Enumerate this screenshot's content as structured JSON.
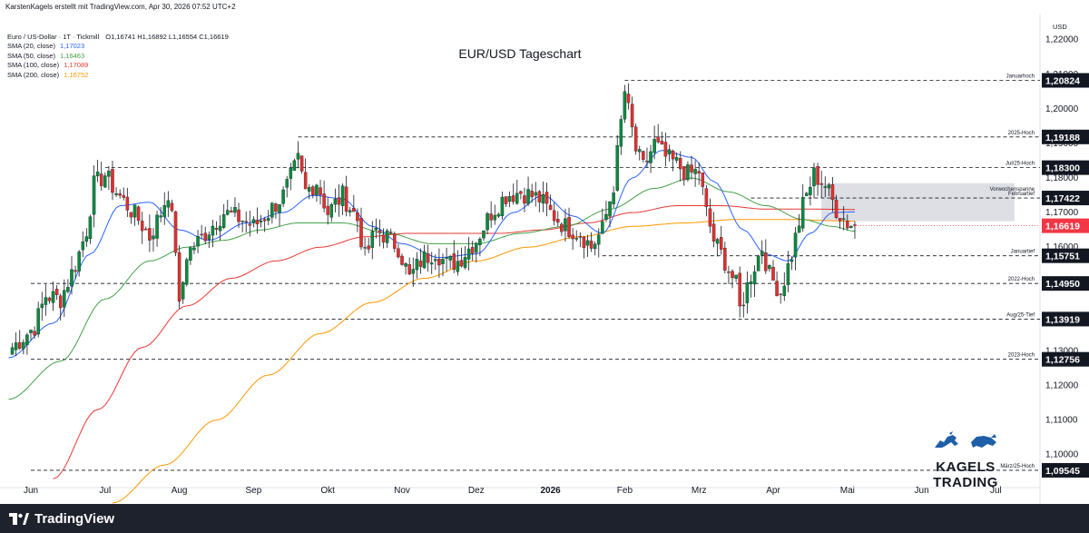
{
  "header": {
    "author_line": "KarstenKagels erstellt mit TradingView.com, Apr 30, 2026 07:52 UTC+2"
  },
  "legend": {
    "symbol_line": "Euro / US-Dollar · 1T · Tickmill",
    "ohlc": "O1,16741  H1,16892  L1,16554  C1,16619",
    "sma": [
      {
        "label": "SMA (20, close)",
        "value": "1,17023",
        "color": "#2962ff"
      },
      {
        "label": "SMA (50, close)",
        "value": "1,16463",
        "color": "#43a047"
      },
      {
        "label": "SMA (100, close)",
        "value": "1,17089",
        "color": "#e53935"
      },
      {
        "label": "SMA (200, close)",
        "value": "1,16752",
        "color": "#ff9800"
      }
    ]
  },
  "footer": {
    "logo_text": "TradingView"
  },
  "branding": {
    "text": "KAGELS TRADING"
  },
  "chart_data": {
    "type": "candlestick",
    "title": "EUR/USD Tageschart",
    "y_axis": {
      "unit": "USD",
      "range": [
        1.0915,
        1.2265
      ],
      "ticks": [
        1.1,
        1.11,
        1.12,
        1.13,
        1.14,
        1.15,
        1.16,
        1.17,
        1.18,
        1.19,
        1.2,
        1.21,
        1.22
      ],
      "tick_labels": [
        "1,10000",
        "1,11000",
        "1,12000",
        "1,13000",
        "1,14000",
        "1,15000",
        "1,16000",
        "1,17000",
        "1,18000",
        "1,19000",
        "1,20000",
        "1,21000",
        "1,22000"
      ]
    },
    "x_axis": {
      "labels": [
        {
          "label": "Jun",
          "month": 0
        },
        {
          "label": "Jul",
          "month": 1
        },
        {
          "label": "Aug",
          "month": 2
        },
        {
          "label": "Sep",
          "month": 3
        },
        {
          "label": "Okt",
          "month": 4
        },
        {
          "label": "Nov",
          "month": 5
        },
        {
          "label": "Dez",
          "month": 6
        },
        {
          "label": "2026",
          "month": 7,
          "bold": true
        },
        {
          "label": "Feb",
          "month": 8
        },
        {
          "label": "Mrz",
          "month": 9
        },
        {
          "label": "Apr",
          "month": 10
        },
        {
          "label": "Mai",
          "month": 11
        },
        {
          "label": "Jun",
          "month": 12
        },
        {
          "label": "Jul",
          "month": 13
        }
      ]
    },
    "levels": [
      {
        "name": "Januarhoch",
        "value": 1.20824,
        "label": "1,20824",
        "start_month": 8.0
      },
      {
        "name": "2025-Hoch",
        "value": 1.19188,
        "label": "1,19188",
        "start_month": 3.6
      },
      {
        "name": "Jul/25-Hoch",
        "value": 1.183,
        "label": "1,18300",
        "start_month": 1.0
      },
      {
        "name": "Februartief",
        "value": 1.17422,
        "label": "1,17422",
        "start_month": 9.7
      },
      {
        "name": "Januartief",
        "value": 1.15751,
        "label": "1,15751",
        "start_month": 7.7
      },
      {
        "name": "2022-Hoch",
        "value": 1.1495,
        "label": "1,14950",
        "start_month": 0.0
      },
      {
        "name": "Aug/25-Tief",
        "value": 1.13919,
        "label": "1,13919",
        "start_month": 2.0
      },
      {
        "name": "2023-Hoch",
        "value": 1.12756,
        "label": "1,12756",
        "start_month": 0.0
      },
      {
        "name": "März/25-Hoch",
        "value": 1.09545,
        "label": "1,09545",
        "start_month": 0.0
      }
    ],
    "zone": {
      "name": "Vorwochenspanne",
      "high": 1.1785,
      "low": 1.1675,
      "start_month": 10.65,
      "end_month": 13.25
    },
    "last_price": {
      "value": 1.16619,
      "label": "1,16619",
      "color": "#f23645"
    },
    "candle_anchors": [
      [
        -0.25,
        1.131
      ],
      [
        0.05,
        1.137
      ],
      [
        0.2,
        1.146
      ],
      [
        0.4,
        1.145
      ],
      [
        0.6,
        1.155
      ],
      [
        0.75,
        1.165
      ],
      [
        0.85,
        1.178
      ],
      [
        1.0,
        1.181
      ],
      [
        1.15,
        1.176
      ],
      [
        1.3,
        1.172
      ],
      [
        1.45,
        1.168
      ],
      [
        1.6,
        1.163
      ],
      [
        1.75,
        1.17
      ],
      [
        1.85,
        1.176
      ],
      [
        1.95,
        1.16
      ],
      [
        2.0,
        1.142
      ],
      [
        2.1,
        1.158
      ],
      [
        2.35,
        1.164
      ],
      [
        2.6,
        1.17
      ],
      [
        2.85,
        1.168
      ],
      [
        3.0,
        1.166
      ],
      [
        3.2,
        1.17
      ],
      [
        3.4,
        1.175
      ],
      [
        3.6,
        1.185
      ],
      [
        3.7,
        1.176
      ],
      [
        3.85,
        1.179
      ],
      [
        4.0,
        1.17
      ],
      [
        4.2,
        1.175
      ],
      [
        4.4,
        1.168
      ],
      [
        4.5,
        1.157
      ],
      [
        4.65,
        1.165
      ],
      [
        4.8,
        1.163
      ],
      [
        4.95,
        1.16
      ],
      [
        5.1,
        1.151
      ],
      [
        5.25,
        1.156
      ],
      [
        5.45,
        1.159
      ],
      [
        5.6,
        1.155
      ],
      [
        5.75,
        1.156
      ],
      [
        6.0,
        1.162
      ],
      [
        6.2,
        1.17
      ],
      [
        6.4,
        1.175
      ],
      [
        6.6,
        1.176
      ],
      [
        6.85,
        1.174
      ],
      [
        7.0,
        1.17
      ],
      [
        7.2,
        1.166
      ],
      [
        7.4,
        1.164
      ],
      [
        7.55,
        1.16
      ],
      [
        7.7,
        1.165
      ],
      [
        7.85,
        1.178
      ],
      [
        7.95,
        1.196
      ],
      [
        8.0,
        1.205
      ],
      [
        8.15,
        1.188
      ],
      [
        8.25,
        1.183
      ],
      [
        8.4,
        1.19
      ],
      [
        8.55,
        1.186
      ],
      [
        8.7,
        1.184
      ],
      [
        8.85,
        1.181
      ],
      [
        9.0,
        1.182
      ],
      [
        9.1,
        1.17
      ],
      [
        9.2,
        1.162
      ],
      [
        9.35,
        1.156
      ],
      [
        9.5,
        1.149
      ],
      [
        9.55,
        1.142
      ],
      [
        9.7,
        1.152
      ],
      [
        9.85,
        1.16
      ],
      [
        9.95,
        1.152
      ],
      [
        10.1,
        1.147
      ],
      [
        10.25,
        1.158
      ],
      [
        10.4,
        1.172
      ],
      [
        10.55,
        1.181
      ],
      [
        10.7,
        1.178
      ],
      [
        10.85,
        1.171
      ],
      [
        11.0,
        1.167
      ],
      [
        11.1,
        1.1662
      ]
    ],
    "sma_anchors": {
      "sma20": [
        [
          -0.3,
          1.128
        ],
        [
          0.3,
          1.138
        ],
        [
          0.8,
          1.158
        ],
        [
          1.2,
          1.172
        ],
        [
          1.6,
          1.173
        ],
        [
          2.0,
          1.165
        ],
        [
          2.4,
          1.162
        ],
        [
          2.9,
          1.167
        ],
        [
          3.4,
          1.17
        ],
        [
          3.8,
          1.175
        ],
        [
          4.2,
          1.174
        ],
        [
          4.6,
          1.166
        ],
        [
          5.0,
          1.161
        ],
        [
          5.5,
          1.157
        ],
        [
          6.0,
          1.158
        ],
        [
          6.5,
          1.17
        ],
        [
          6.9,
          1.175
        ],
        [
          7.3,
          1.169
        ],
        [
          7.7,
          1.164
        ],
        [
          8.1,
          1.18
        ],
        [
          8.5,
          1.188
        ],
        [
          8.9,
          1.186
        ],
        [
          9.2,
          1.179
        ],
        [
          9.6,
          1.165
        ],
        [
          9.9,
          1.158
        ],
        [
          10.2,
          1.156
        ],
        [
          10.5,
          1.164
        ],
        [
          10.8,
          1.17
        ],
        [
          11.1,
          1.1702
        ]
      ],
      "sma50": [
        [
          -0.3,
          1.116
        ],
        [
          0.4,
          1.127
        ],
        [
          1.0,
          1.145
        ],
        [
          1.6,
          1.156
        ],
        [
          2.1,
          1.16
        ],
        [
          2.6,
          1.162
        ],
        [
          3.1,
          1.165
        ],
        [
          3.6,
          1.167
        ],
        [
          4.2,
          1.167
        ],
        [
          4.8,
          1.164
        ],
        [
          5.4,
          1.161
        ],
        [
          6.0,
          1.161
        ],
        [
          6.6,
          1.164
        ],
        [
          7.2,
          1.166
        ],
        [
          7.8,
          1.171
        ],
        [
          8.4,
          1.177
        ],
        [
          8.9,
          1.18
        ],
        [
          9.4,
          1.176
        ],
        [
          9.9,
          1.172
        ],
        [
          10.4,
          1.168
        ],
        [
          10.8,
          1.166
        ],
        [
          11.1,
          1.1646
        ]
      ],
      "sma100": [
        [
          0.3,
          1.093
        ],
        [
          0.9,
          1.113
        ],
        [
          1.5,
          1.131
        ],
        [
          2.1,
          1.143
        ],
        [
          2.7,
          1.151
        ],
        [
          3.3,
          1.156
        ],
        [
          3.9,
          1.16
        ],
        [
          4.5,
          1.163
        ],
        [
          5.1,
          1.164
        ],
        [
          5.7,
          1.164
        ],
        [
          6.3,
          1.164
        ],
        [
          6.9,
          1.165
        ],
        [
          7.5,
          1.167
        ],
        [
          8.1,
          1.17
        ],
        [
          8.7,
          1.172
        ],
        [
          9.3,
          1.172
        ],
        [
          9.9,
          1.171
        ],
        [
          10.5,
          1.171
        ],
        [
          11.1,
          1.1709
        ]
      ],
      "sma200": [
        [
          1.1,
          1.086
        ],
        [
          1.8,
          1.097
        ],
        [
          2.5,
          1.11
        ],
        [
          3.2,
          1.123
        ],
        [
          3.9,
          1.135
        ],
        [
          4.6,
          1.144
        ],
        [
          5.3,
          1.151
        ],
        [
          6.0,
          1.156
        ],
        [
          6.7,
          1.16
        ],
        [
          7.4,
          1.163
        ],
        [
          8.1,
          1.166
        ],
        [
          8.8,
          1.167
        ],
        [
          9.5,
          1.168
        ],
        [
          10.2,
          1.168
        ],
        [
          11.1,
          1.1675
        ]
      ]
    }
  }
}
